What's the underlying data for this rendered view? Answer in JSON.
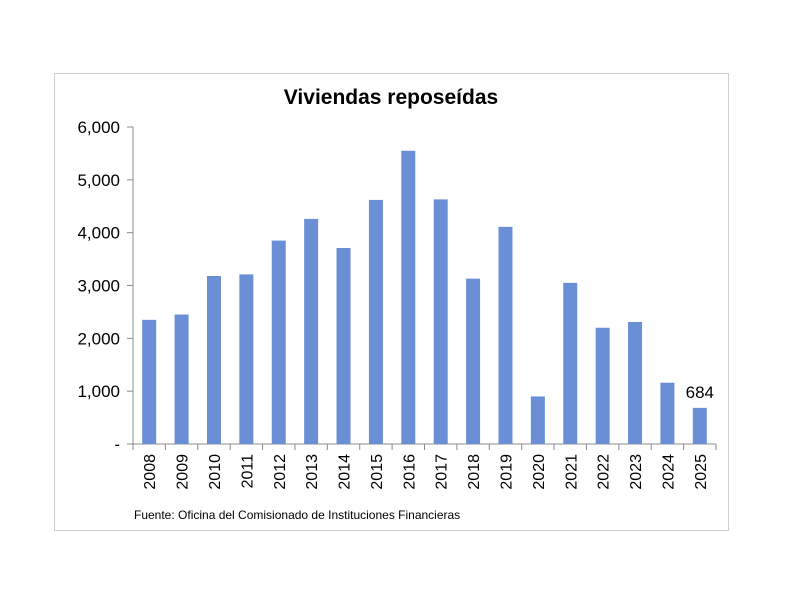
{
  "chart_data": {
    "type": "bar",
    "title": "Viviendas reposeídas",
    "xlabel": "",
    "ylabel": "",
    "categories": [
      "2008",
      "2009",
      "2010",
      "2011",
      "2012",
      "2013",
      "2014",
      "2015",
      "2016",
      "2017",
      "2018",
      "2019",
      "2020",
      "2021",
      "2022",
      "2023",
      "2024",
      "2025"
    ],
    "values": [
      2350,
      2450,
      3180,
      3210,
      3850,
      4260,
      3710,
      4620,
      5550,
      4630,
      3130,
      4110,
      900,
      3050,
      2200,
      2310,
      1160,
      684
    ],
    "ylim": [
      0,
      6000
    ],
    "yticks": [
      0,
      1000,
      2000,
      3000,
      4000,
      5000,
      6000
    ],
    "ytick_labels": [
      "-",
      "1,000",
      "2,000",
      "3,000",
      "4,000",
      "5,000",
      "6,000"
    ],
    "data_labels": [
      {
        "category": "2025",
        "text": "684"
      }
    ],
    "bar_color": "#6a8fd6",
    "grid": false,
    "legend": "none",
    "source": "Fuente: Oficina del Comisionado de Instituciones Financieras"
  }
}
